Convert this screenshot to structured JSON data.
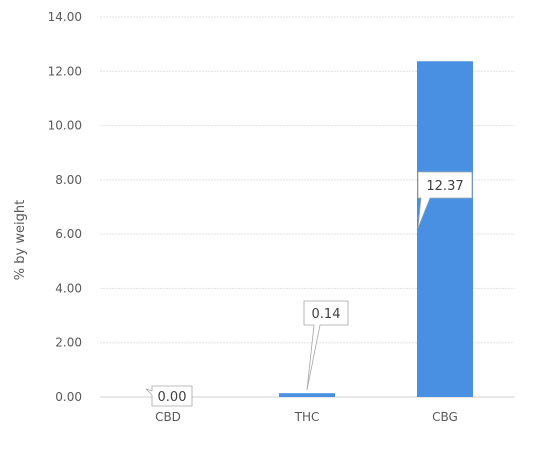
{
  "chart_data": {
    "type": "bar",
    "categories": [
      "CBD",
      "THC",
      "CBG"
    ],
    "values": [
      0.0,
      0.14,
      12.37
    ],
    "data_labels": [
      "0.00",
      "0.14",
      "12.37"
    ],
    "title": "",
    "xlabel": "",
    "ylabel": "% by weight",
    "ylim": [
      0,
      14
    ],
    "yticks": [
      "0.00",
      "2.00",
      "4.00",
      "6.00",
      "8.00",
      "10.00",
      "12.00",
      "14.00"
    ],
    "grid": true,
    "legend": "none",
    "bar_color": "#4a90e2"
  }
}
